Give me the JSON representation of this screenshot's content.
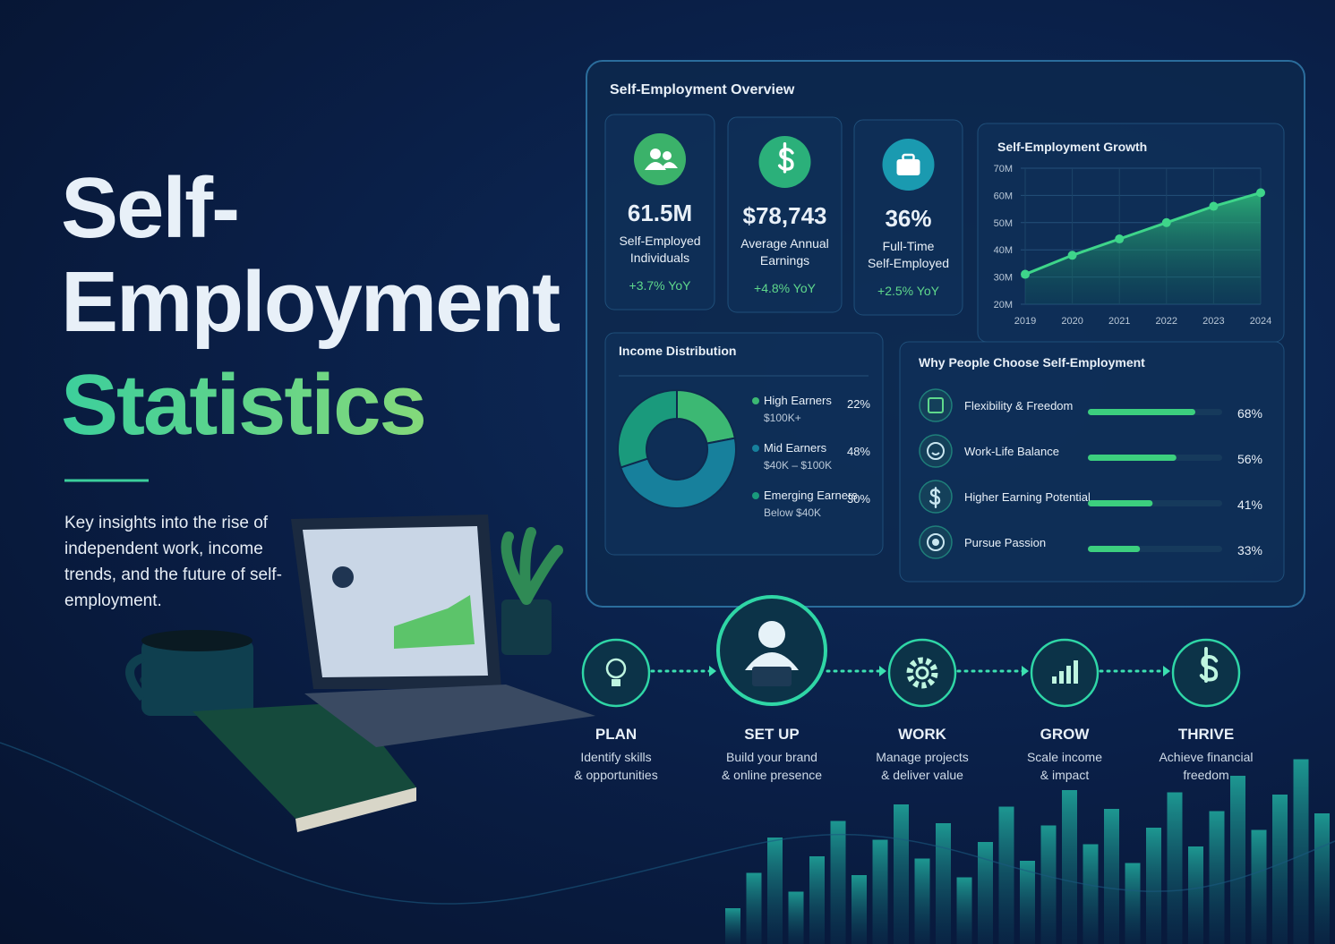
{
  "header": {
    "title_lines": [
      "Self-",
      "Employment",
      "Statistics"
    ],
    "description": "Key insights into the rise of independent work, income trends, and the future of self-employment."
  },
  "dashboard": {
    "title": "Self-Employment Overview",
    "kpis": [
      {
        "value": "61.5M",
        "label_lines": [
          "Self-Employed",
          "Individuals"
        ],
        "change": "+3.7% YoY"
      },
      {
        "value": "$78,743",
        "label_lines": [
          "Average Annual",
          "Earnings"
        ],
        "change": "+4.8% YoY"
      },
      {
        "value": "36%",
        "label_lines": [
          "Full-Time",
          "Self-Employed"
        ],
        "change": "+2.5% YoY"
      }
    ]
  },
  "chart_data": [
    {
      "type": "line",
      "title": "Self-Employment Growth",
      "x": [
        2019,
        2020,
        2021,
        2022,
        2023,
        2024
      ],
      "series": [
        {
          "color": "#3ed58a",
          "values": [
            31,
            38,
            44,
            50,
            56,
            61
          ]
        }
      ],
      "xlim": [
        2019,
        2024
      ],
      "xticks": [
        2019,
        2020,
        2021,
        2022,
        2023,
        2024
      ],
      "ylim": [
        20,
        70
      ],
      "yticks": [
        {
          "value": 20,
          "label": "20M"
        },
        {
          "value": 30,
          "label": "30M"
        },
        {
          "value": 40,
          "label": "40M"
        },
        {
          "value": 50,
          "label": "50M"
        },
        {
          "value": 60,
          "label": "60M"
        },
        {
          "value": 70,
          "label": "70M"
        }
      ],
      "grid": true
    },
    {
      "type": "pie",
      "title": "Income Distribution",
      "categories": [
        "High Earners",
        "Mid Earners",
        "Emerging Earners"
      ],
      "sublabels": [
        "$100K+",
        "$40K – $100K",
        "Below $40K"
      ],
      "values": [
        22,
        48,
        30
      ],
      "value_labels": [
        "22%",
        "48%",
        "30%"
      ],
      "colors": [
        "#3cb873",
        "#17809c",
        "#1a9a7c"
      ]
    },
    {
      "type": "bar",
      "orientation": "horizontal",
      "title": "Why People Choose Self-Employment",
      "categories": [
        "Flexibility & Freedom",
        "Work-Life Balance",
        "Higher Earning Potential",
        "Pursue Passion"
      ],
      "values": [
        68,
        56,
        41,
        33
      ],
      "value_labels": [
        "68%",
        "56%",
        "41%",
        "33%"
      ],
      "color": "#3ccf7e",
      "xlim": [
        0,
        85
      ]
    }
  ],
  "steps": [
    {
      "title": "PLAN",
      "lines": [
        "Identify skills",
        "& opportunities"
      ]
    },
    {
      "title": "SET UP",
      "lines": [
        "Build your brand",
        "& online presence"
      ]
    },
    {
      "title": "WORK",
      "lines": [
        "Manage projects",
        "& deliver value"
      ]
    },
    {
      "title": "GROW",
      "lines": [
        "Scale income",
        "& impact"
      ]
    },
    {
      "title": "THRIVE",
      "lines": [
        "Achieve financial",
        "freedom"
      ]
    }
  ]
}
